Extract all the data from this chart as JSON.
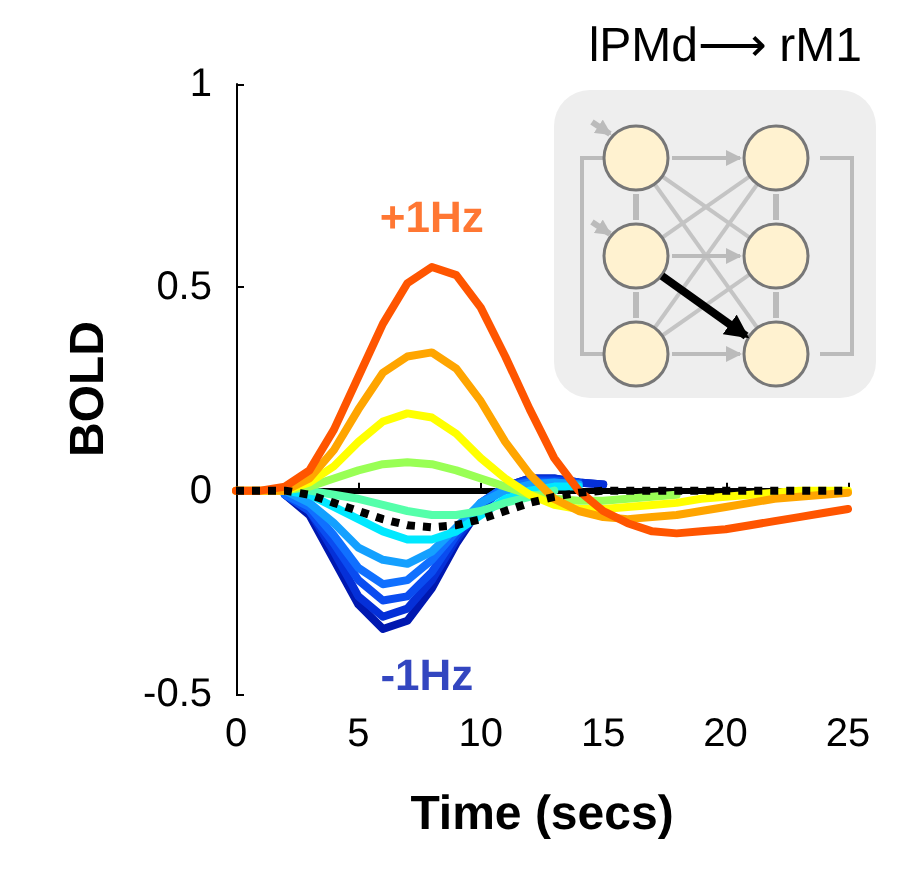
{
  "chart_data": {
    "type": "line",
    "title": "lPMd⟶ rM1",
    "xlabel": "Time (secs)",
    "ylabel": "BOLD",
    "x": [
      0,
      1,
      2,
      3,
      4,
      5,
      6,
      7,
      8,
      9,
      10,
      11,
      12,
      13,
      14,
      15,
      16,
      17,
      18,
      19,
      20,
      21,
      22,
      23,
      24,
      25
    ],
    "series": [
      {
        "color": "#0018b0",
        "values": [
          null,
          null,
          -0.01,
          -0.06,
          -0.17,
          -0.28,
          -0.34,
          -0.32,
          -0.24,
          -0.13,
          -0.04,
          0.01,
          0.03,
          0.03,
          0.02,
          0.015,
          null,
          null,
          null,
          null,
          null,
          null,
          null,
          null,
          null,
          null
        ]
      },
      {
        "color": "#0530d8",
        "values": [
          null,
          null,
          -0.01,
          -0.05,
          -0.15,
          -0.26,
          -0.31,
          -0.29,
          -0.22,
          -0.12,
          -0.04,
          0.01,
          0.03,
          0.03,
          0.02,
          0.015,
          null,
          null,
          null,
          null,
          null,
          null,
          null,
          null,
          null,
          null
        ]
      },
      {
        "color": "#0a4cf0",
        "values": [
          null,
          null,
          -0.01,
          -0.05,
          -0.13,
          -0.22,
          -0.27,
          -0.26,
          -0.2,
          -0.11,
          -0.03,
          0.01,
          0.025,
          0.025,
          0.02,
          null,
          null,
          null,
          null,
          null,
          null,
          null,
          null,
          null,
          null,
          null
        ]
      },
      {
        "color": "#1070ff",
        "values": [
          null,
          null,
          -0.01,
          -0.04,
          -0.11,
          -0.19,
          -0.23,
          -0.22,
          -0.17,
          -0.1,
          -0.03,
          0.01,
          0.02,
          0.02,
          0.015,
          null,
          null,
          null,
          null,
          null,
          null,
          null,
          null,
          null,
          null,
          null
        ]
      },
      {
        "color": "#14a0ff",
        "values": [
          null,
          null,
          0,
          -0.03,
          -0.08,
          -0.14,
          -0.17,
          -0.18,
          -0.15,
          -0.09,
          -0.03,
          0,
          0.015,
          0.02,
          0.015,
          null,
          null,
          null,
          null,
          null,
          null,
          null,
          null,
          null,
          null,
          null
        ]
      },
      {
        "color": "#00e8ff",
        "values": [
          null,
          null,
          0,
          -0.01,
          -0.04,
          -0.07,
          -0.1,
          -0.12,
          -0.12,
          -0.1,
          -0.06,
          -0.02,
          0,
          0.01,
          0.01,
          null,
          null,
          null,
          null,
          null,
          null,
          null,
          null,
          null,
          null,
          null
        ]
      },
      {
        "color": "#55ffaa",
        "values": [
          null,
          null,
          null,
          0,
          -0.01,
          -0.02,
          -0.035,
          -0.05,
          -0.06,
          -0.06,
          -0.05,
          -0.03,
          -0.015,
          0,
          null,
          null,
          null,
          null,
          null,
          null,
          null,
          null,
          null,
          null,
          null,
          null
        ]
      },
      {
        "color": "#99ff55",
        "values": [
          null,
          null,
          0,
          0.01,
          0.03,
          0.05,
          0.065,
          0.07,
          0.065,
          0.05,
          0.03,
          0.01,
          -0.01,
          -0.02,
          -0.025,
          -0.025,
          -0.02,
          -0.015,
          -0.01,
          null,
          null,
          null,
          null,
          null,
          null,
          null
        ]
      },
      {
        "color": "#ffff00",
        "values": [
          0,
          0,
          0,
          0.02,
          0.06,
          0.12,
          0.17,
          0.19,
          0.18,
          0.14,
          0.08,
          0.03,
          -0.01,
          -0.035,
          -0.045,
          -0.045,
          -0.04,
          -0.035,
          -0.03,
          -0.02,
          -0.015,
          -0.01,
          -0.005,
          0,
          0,
          0
        ]
      },
      {
        "color": "#ffa500",
        "values": [
          0,
          0,
          0,
          0.03,
          0.1,
          0.2,
          0.29,
          0.33,
          0.34,
          0.3,
          0.22,
          0.12,
          0.04,
          -0.02,
          -0.05,
          -0.065,
          -0.07,
          -0.065,
          -0.06,
          -0.05,
          -0.04,
          -0.03,
          -0.02,
          -0.015,
          -0.01,
          -0.005
        ]
      },
      {
        "color": "#ff5500",
        "values": [
          0,
          0,
          0.01,
          0.05,
          0.15,
          0.28,
          0.41,
          0.51,
          0.55,
          0.53,
          0.45,
          0.33,
          0.2,
          0.08,
          0,
          -0.05,
          -0.08,
          -0.1,
          -0.105,
          -0.1,
          -0.095,
          -0.085,
          -0.075,
          -0.065,
          -0.055,
          -0.045
        ]
      },
      {
        "color": "#000000",
        "line_style": "dotted",
        "values": [
          0,
          0,
          0,
          -0.01,
          -0.03,
          -0.05,
          -0.07,
          -0.085,
          -0.09,
          -0.085,
          -0.07,
          -0.05,
          -0.03,
          -0.015,
          -0.005,
          0,
          0,
          0,
          0,
          0,
          0,
          0,
          0,
          0,
          0,
          0
        ]
      }
    ],
    "annotations": [
      "+1Hz",
      "-1Hz"
    ],
    "ref_lines": [
      {
        "axis": "y",
        "value": 0,
        "color": "#000000"
      }
    ],
    "xlim": [
      0,
      25
    ],
    "xticks": [
      0,
      5,
      10,
      15,
      20,
      25
    ],
    "ylim": [
      -0.5,
      1
    ],
    "yticks": [
      -0.5,
      0,
      0.5,
      1
    ],
    "grid": false,
    "marker": "none",
    "line_style": "solid"
  }
}
